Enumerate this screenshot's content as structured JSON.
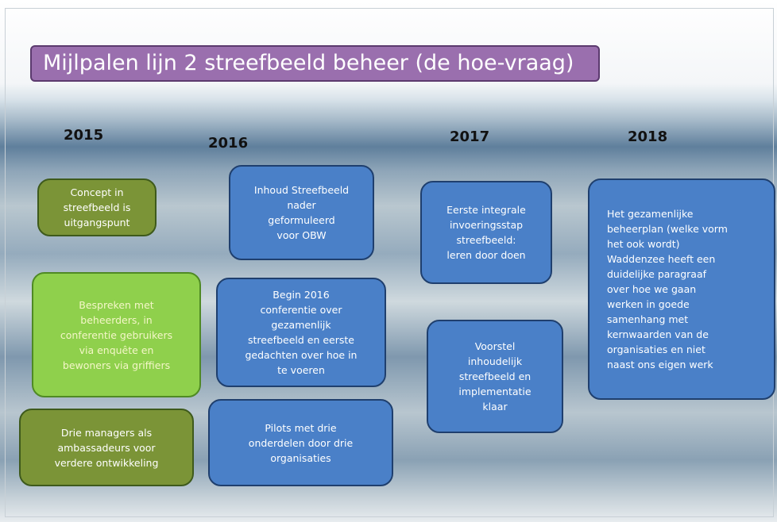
{
  "title": "Mijlpalen lijn 2 streefbeeld beheer (de hoe-vraag)",
  "years": [
    "2015",
    "2016",
    "2017",
    "2018"
  ],
  "boxes": [
    {
      "lines": [
        "Concept  in",
        "streefbeeld is",
        "uitgangspunt"
      ]
    },
    {
      "lines": [
        "Bespreken  met",
        "beheerders,  in",
        "conferentie  gebruikers",
        "via  enquête  en",
        "bewoners via  griffiers"
      ]
    },
    {
      "lines": [
        "Drie  managers  als",
        "ambassadeurs  voor",
        "verdere  ontwikkeling"
      ]
    },
    {
      "lines": [
        "Inhoud  Streefbeeld",
        "nader",
        "geformuleerd",
        "voor  OBW"
      ]
    },
    {
      "lines": [
        "Begin  2016",
        "conferentie  over",
        "gezamenlijk",
        "streefbeeld  en  eerste",
        "gedachten  over  hoe  in",
        "te  voeren"
      ]
    },
    {
      "lines": [
        "Pilots  met  drie",
        "onderdelen  door  drie",
        "organisaties"
      ]
    },
    {
      "lines": [
        "Eerste  integrale",
        "invoeringsstap",
        "streefbeeld:",
        "leren  door  doen"
      ]
    },
    {
      "lines": [
        "Voorstel",
        "inhoudelijk",
        "streefbeeld  en",
        "implementatie",
        "klaar"
      ]
    },
    {
      "lines": [
        "Het  gezamenlijke",
        "beheerplan  (welke  vorm",
        "het  ook  wordt)",
        "Waddenzee  heeft  een",
        "duidelijke  paragraaf",
        "over  hoe  we  gaan",
        "werken  in  goede",
        "samenhang  met",
        "kernwaarden  van  de",
        "organisaties  en  niet",
        "naast  ons  eigen  werk"
      ]
    }
  ]
}
